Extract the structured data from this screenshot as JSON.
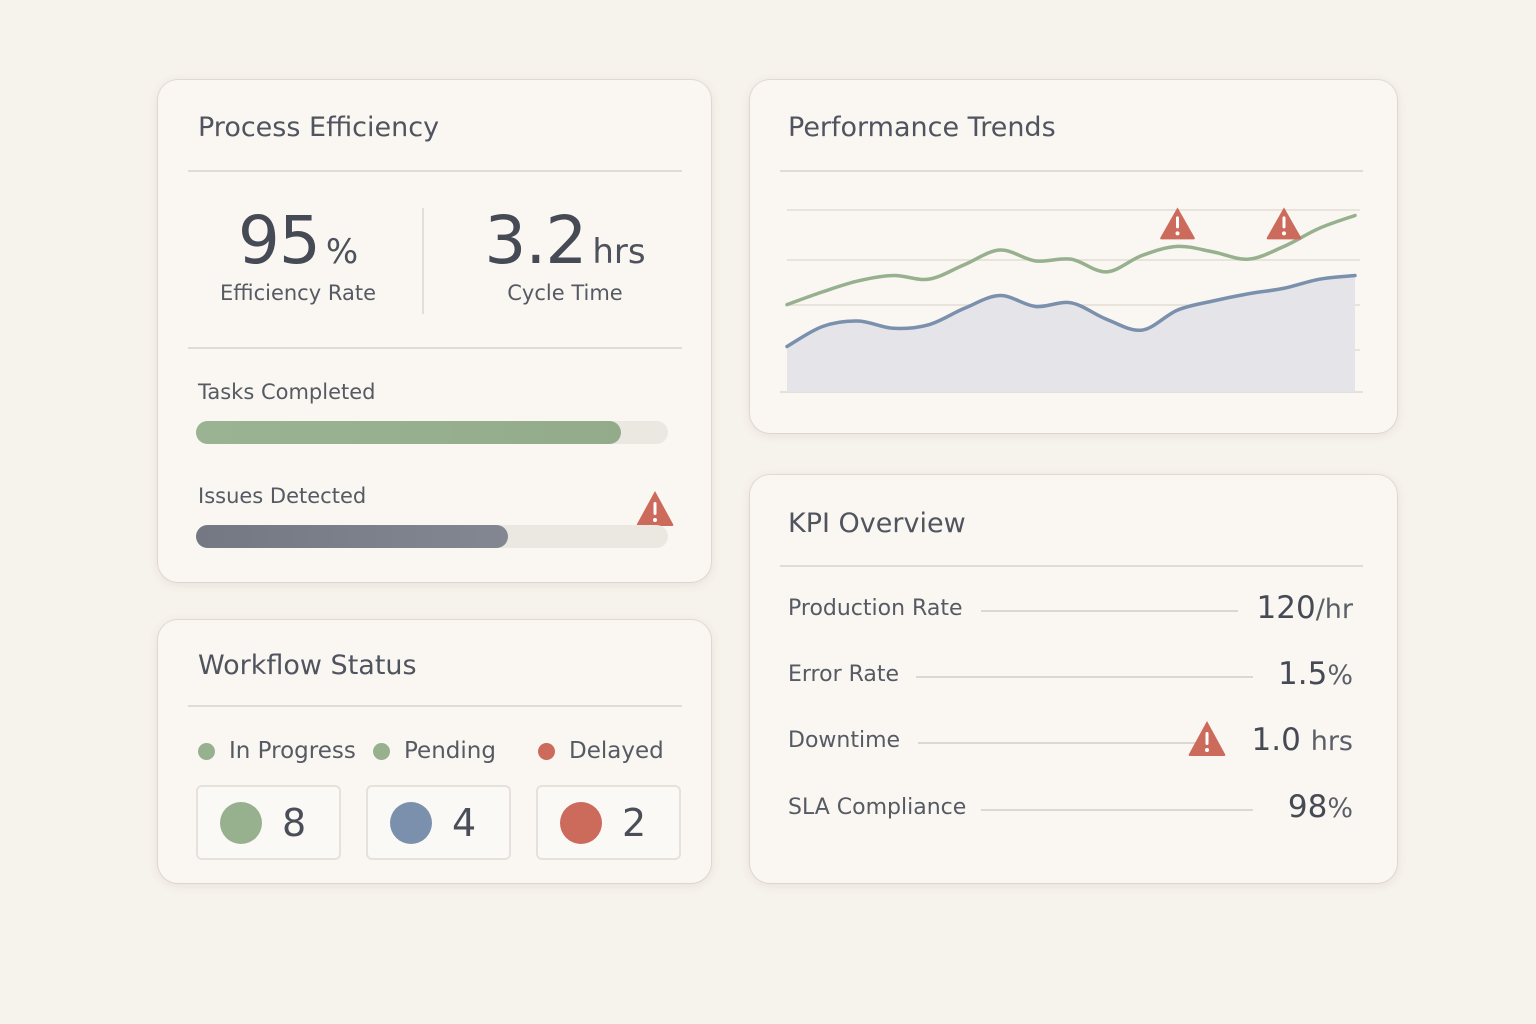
{
  "colors": {
    "green": "#97b08e",
    "blue": "#7a90ad",
    "red": "#cc6a5c",
    "gray_bar": "#7b7f88",
    "background": "#f6f2ec",
    "card": "#faf7f2"
  },
  "process_efficiency": {
    "title": "Process Efficiency",
    "efficiency": {
      "value": "95",
      "unit": "%",
      "label": "Efficiency Rate"
    },
    "cycle": {
      "value": "3.2",
      "unit": "hrs",
      "label": "Cycle Time"
    },
    "tasks": {
      "label": "Tasks Completed",
      "progress": 0.9
    },
    "issues": {
      "label": "Issues Detected",
      "progress": 0.66,
      "icon": "warning-icon"
    }
  },
  "workflow_status": {
    "title": "Workflow Status",
    "legend": [
      {
        "label": "In Progress",
        "color": "#97b08e"
      },
      {
        "label": "Pending",
        "color": "#97b08e"
      },
      {
        "label": "Delayed",
        "color": "#cc6a5c"
      }
    ],
    "counts": [
      {
        "value": "8",
        "color": "#97b08e"
      },
      {
        "value": "4",
        "color": "#7a90ad"
      },
      {
        "value": "2",
        "color": "#cc6a5c"
      }
    ]
  },
  "performance_trends": {
    "title": "Performance Trends",
    "icons": [
      "warning-icon",
      "warning-icon"
    ]
  },
  "chart_data": {
    "type": "line",
    "title": "Performance Trends",
    "xlabel": "",
    "ylabel": "",
    "grid": true,
    "ylim": [
      0,
      100
    ],
    "x": [
      0,
      1,
      2,
      3,
      4,
      5,
      6,
      7,
      8,
      9,
      10,
      11,
      12,
      13,
      14,
      15,
      16
    ],
    "series": [
      {
        "color": "#97b08e",
        "values": [
          48,
          55,
          61,
          64,
          62,
          70,
          78,
          72,
          73,
          66,
          75,
          80,
          77,
          73,
          80,
          90,
          97
        ]
      },
      {
        "color": "#7a90ad",
        "values": [
          25,
          36,
          39,
          35,
          37,
          46,
          53,
          47,
          49,
          40,
          34,
          45,
          50,
          54,
          57,
          62,
          64
        ],
        "filled": true
      }
    ],
    "alerts": [
      {
        "x": 11,
        "series": 0
      },
      {
        "x": 14,
        "series": 0
      }
    ]
  },
  "kpi_overview": {
    "title": "KPI Overview",
    "rows": [
      {
        "name": "Production Rate",
        "value": "120",
        "unit": "/hr",
        "warning": false
      },
      {
        "name": "Error Rate",
        "value": "1.5",
        "unit": "%",
        "warning": false
      },
      {
        "name": "Downtime",
        "value": "1.0",
        "unit": "hrs",
        "warning": true
      },
      {
        "name": "SLA Compliance",
        "value": "98",
        "unit": "%",
        "warning": false
      }
    ]
  }
}
